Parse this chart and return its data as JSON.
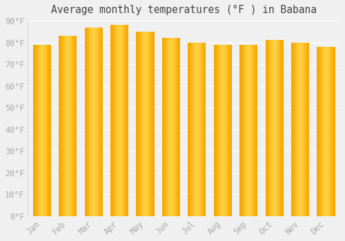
{
  "title": "Average monthly temperatures (°F ) in Babana",
  "months": [
    "Jan",
    "Feb",
    "Mar",
    "Apr",
    "May",
    "Jun",
    "Jul",
    "Aug",
    "Sep",
    "Oct",
    "Nov",
    "Dec"
  ],
  "values": [
    79,
    83,
    87,
    88,
    85,
    82,
    80,
    79,
    79,
    81,
    80,
    78
  ],
  "ylim": [
    0,
    90
  ],
  "yticks": [
    0,
    10,
    20,
    30,
    40,
    50,
    60,
    70,
    80,
    90
  ],
  "ytick_labels": [
    "0°F",
    "10°F",
    "20°F",
    "30°F",
    "40°F",
    "50°F",
    "60°F",
    "70°F",
    "80°F",
    "90°F"
  ],
  "background_color": "#f0f0f0",
  "grid_color": "#ffffff",
  "bar_color_edge": "#F5A800",
  "bar_color_center": "#FFD040",
  "title_fontsize": 10.5,
  "tick_fontsize": 8.5,
  "tick_color": "#aaaaaa",
  "title_color": "#444444"
}
